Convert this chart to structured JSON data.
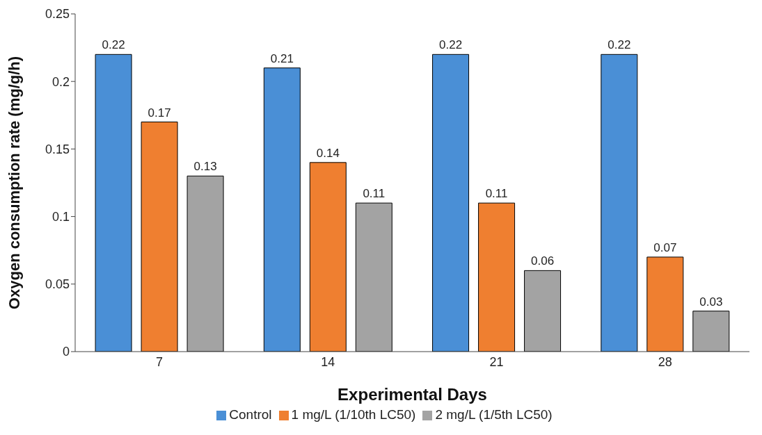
{
  "chart_data": {
    "type": "bar",
    "xlabel": "Experimental Days",
    "ylabel": "Oxygen consumption rate (mg/g/h)",
    "categories": [
      "7",
      "14",
      "21",
      "28"
    ],
    "series": [
      {
        "name": "Control",
        "color": "#4a8fd6",
        "values": [
          0.22,
          0.21,
          0.22,
          0.22
        ]
      },
      {
        "name": "1 mg/L (1/10th LC50)",
        "color": "#ef7f30",
        "values": [
          0.17,
          0.14,
          0.11,
          0.07
        ]
      },
      {
        "name": "2 mg/L (1/5th LC50)",
        "color": "#a3a3a3",
        "values": [
          0.13,
          0.11,
          0.06,
          0.03
        ]
      }
    ],
    "ylim": [
      0,
      0.25
    ],
    "yticks": [
      0,
      0.05,
      0.1,
      0.15,
      0.2,
      0.25
    ],
    "grid": false,
    "legend": "bottom",
    "data_labels": true
  }
}
